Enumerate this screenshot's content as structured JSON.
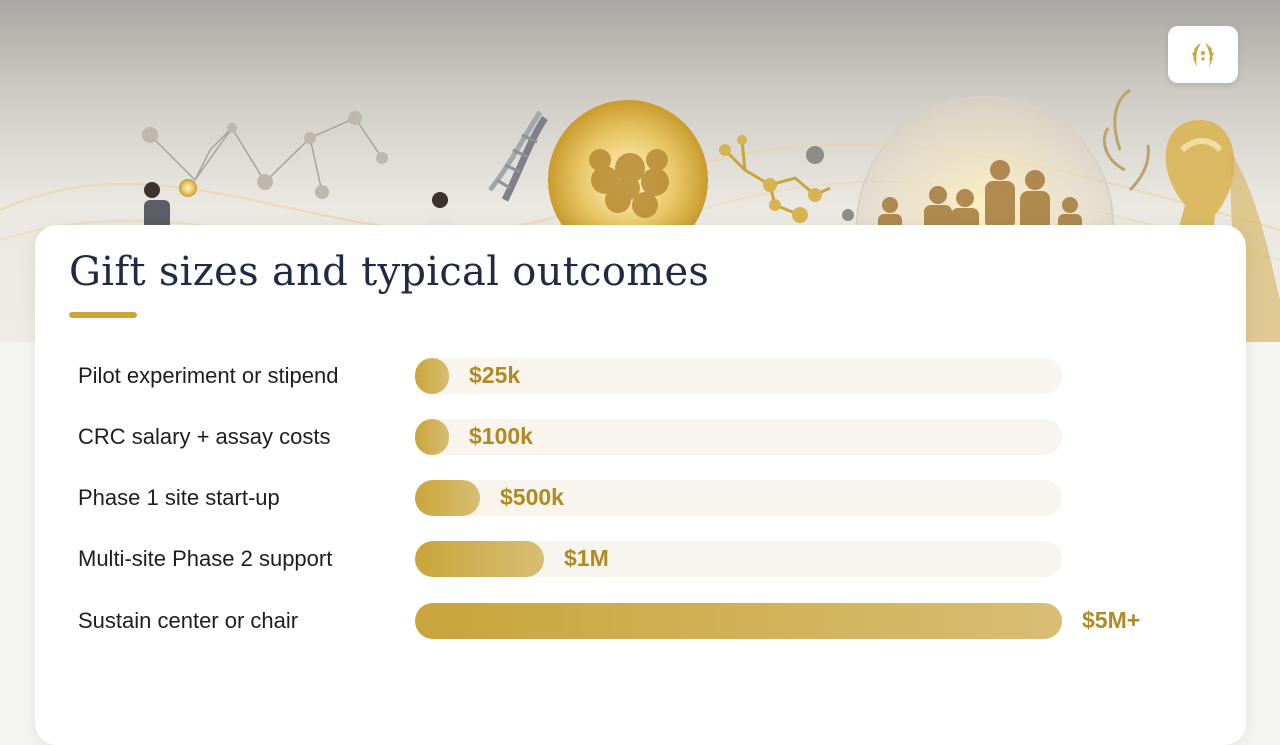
{
  "slide": {
    "title": "Gift sizes and typical outcomes"
  },
  "logo": {
    "icon": "wheat-wreath-logo-icon"
  },
  "colors": {
    "accent": "#c9a53a",
    "accent_text": "#b18a22",
    "title": "#1f2a44",
    "track": "#f8f5ef"
  },
  "chart_data": {
    "type": "bar",
    "orientation": "horizontal",
    "categories": [
      "Pilot experiment or stipend",
      "CRC salary + assay costs",
      "Phase 1 site start-up",
      "Multi-site Phase 2 support",
      "Sustain center or chair"
    ],
    "value_labels": [
      "$25k",
      "$100k",
      "$500k",
      "$1M",
      "$5M+"
    ],
    "values": [
      25000,
      100000,
      500000,
      1000000,
      5000000
    ],
    "fill_fraction": [
      0.05,
      0.05,
      0.1,
      0.2,
      1.0
    ],
    "title": "",
    "xlabel": "",
    "ylabel": ""
  }
}
